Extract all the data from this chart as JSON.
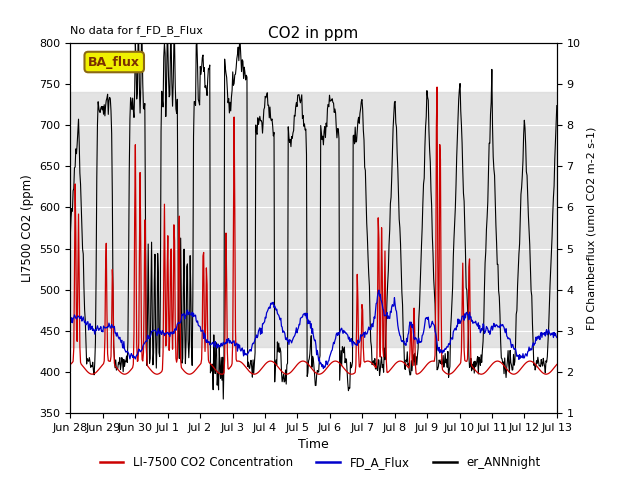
{
  "title": "CO2 in ppm",
  "top_left_text": "No data for f_FD_B_Flux",
  "xlabel": "Time",
  "ylabel_left": "LI7500 CO2 (ppm)",
  "ylabel_right": "FD Chamberflux (umol CO2 m-2 s-1)",
  "ylim_left": [
    350,
    800
  ],
  "ylim_right": [
    1.0,
    10.0
  ],
  "yticks_left": [
    350,
    400,
    450,
    500,
    550,
    600,
    650,
    700,
    750,
    800
  ],
  "yticks_right": [
    1.0,
    2.0,
    3.0,
    4.0,
    5.0,
    6.0,
    7.0,
    8.0,
    9.0,
    10.0
  ],
  "bg_gray_low": 430,
  "bg_gray_high": 740,
  "legend_entries": [
    "LI-7500 CO2 Concentration",
    "FD_A_Flux",
    "er_ANNnight"
  ],
  "ba_flux_label": "BA_flux",
  "ba_flux_bg": "#f0f000",
  "ba_flux_border": "#8b6914",
  "xtick_labels": [
    "Jun 28",
    "Jun 29",
    "Jun 30",
    "Jul 1",
    "Jul 2",
    "Jul 3",
    "Jul 4",
    "Jul 5",
    "Jul 6",
    "Jul 7",
    "Jul 8",
    "Jul 9",
    "Jul 10",
    "Jul 11",
    "Jul 12",
    "Jul 13"
  ],
  "red_color": "#cc0000",
  "blue_color": "#0000cc",
  "black_color": "#000000",
  "n_days": 15,
  "pts_per_day": 48
}
